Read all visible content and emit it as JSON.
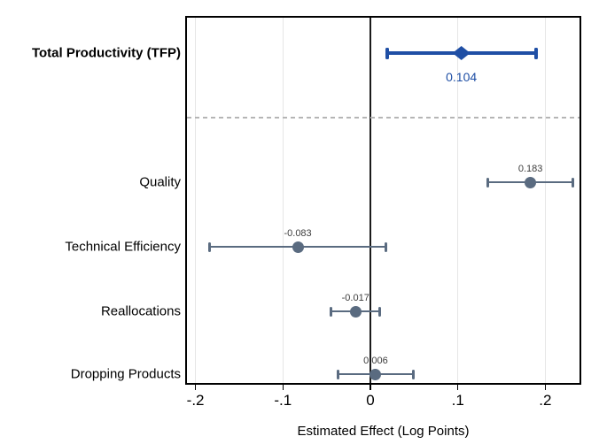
{
  "chart_data": {
    "type": "scatter",
    "subtype": "horizontal-coefficient-plot-with-confidence-intervals",
    "title": "",
    "xlabel": "Estimated Effect (Log Points)",
    "ylabel": "",
    "xlim": [
      -0.21,
      0.24
    ],
    "xticks": [
      -0.2,
      -0.1,
      0,
      0.1,
      0.2
    ],
    "xtick_labels": [
      "-.2",
      "-.1",
      "0",
      ".1",
      ".2"
    ],
    "grid": "faint vertical gridlines at each x tick",
    "zero_reference_line": 0,
    "separator": "dashed horizontal line between TFP row and component rows",
    "legend": "none",
    "rows": [
      {
        "category": "Total Productivity (TFP)",
        "estimate": 0.104,
        "ci_low": 0.019,
        "ci_high": 0.189,
        "value_label": "0.104",
        "marker": "diamond",
        "color": "#1f4fa5",
        "emphasis": true,
        "label_position": "below"
      },
      {
        "category": "Quality",
        "estimate": 0.183,
        "ci_low": 0.134,
        "ci_high": 0.232,
        "value_label": "0.183",
        "marker": "circle",
        "color": "#5a6b80",
        "emphasis": false,
        "label_position": "above"
      },
      {
        "category": "Technical Efficiency",
        "estimate": -0.083,
        "ci_low": -0.184,
        "ci_high": 0.018,
        "value_label": "-0.083",
        "marker": "circle",
        "color": "#5a6b80",
        "emphasis": false,
        "label_position": "above"
      },
      {
        "category": "Reallocations",
        "estimate": -0.017,
        "ci_low": -0.045,
        "ci_high": 0.011,
        "value_label": "-0.017",
        "marker": "circle",
        "color": "#5a6b80",
        "emphasis": false,
        "label_position": "above"
      },
      {
        "category": "Dropping Products",
        "estimate": 0.006,
        "ci_low": -0.037,
        "ci_high": 0.049,
        "value_label": "0.006",
        "marker": "circle",
        "color": "#5a6b80",
        "emphasis": false,
        "label_position": "above"
      }
    ]
  },
  "colors": {
    "accent_blue": "#1f4fa5",
    "slate_gray": "#5a6b80",
    "value_label_gray": "#3d3d3d",
    "gridline": "#e6e6e6",
    "dashed_separator": "#b5b5b5",
    "axis_border": "#000000",
    "background": "#ffffff"
  }
}
